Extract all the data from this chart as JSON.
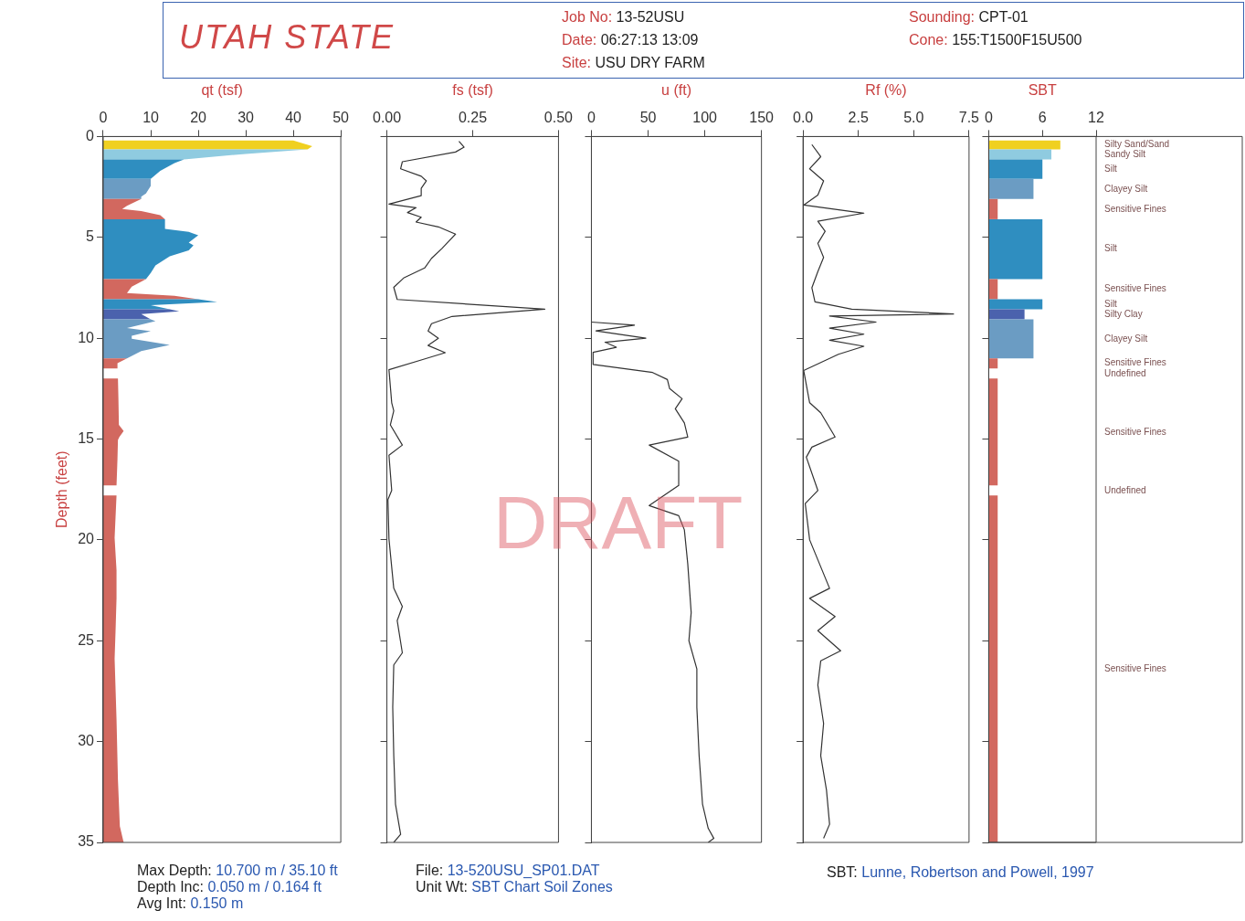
{
  "chart_data": [
    {
      "type": "area",
      "title": "UTAH STATE",
      "xlabel": "qt (tsf)",
      "ylabel": "Depth (feet)",
      "xlim": [
        0,
        50
      ],
      "xticks": [
        0,
        10,
        20,
        30,
        40,
        50
      ],
      "ylim": [
        35,
        0
      ],
      "yticks": [
        0,
        5,
        10,
        15,
        20,
        25,
        30,
        35
      ],
      "annotations": [
        "Job No: 13-52USU",
        "Date: 06:27:13 13:09",
        "Site: USU DRY FARM",
        "Sounding: CPT-01",
        "Cone: 155:T1500F15U500",
        "Max Depth:  10.700 m /  35.10 ft",
        "Depth Inc: 0.050 m / 0.164 ft",
        "Avg Int: 0.150 m",
        "File: 13-520USU_SP01.DAT",
        "Unit Wt: SBT Chart Soil Zones",
        "SBT: Lunne, Robertson and Powell, 1997",
        "DRAFT"
      ],
      "series": [
        {
          "color": "#f0d020",
          "x": [
            0,
            40,
            44,
            43,
            0
          ],
          "values": [
            0.2,
            0.2,
            0.48,
            0.64,
            0.64
          ]
        },
        {
          "color": "#8fcbe0",
          "x": [
            0,
            43,
            30,
            17,
            0
          ],
          "values": [
            0.64,
            0.64,
            0.86,
            1.14,
            1.14
          ]
        },
        {
          "color": "#2f8ec0",
          "x": [
            0,
            17,
            15,
            12,
            10,
            0
          ],
          "values": [
            1.14,
            1.14,
            1.32,
            1.7,
            2.1,
            2.1
          ]
        },
        {
          "color": "#6b9cc3",
          "x": [
            0,
            10,
            10,
            9,
            8,
            8,
            0
          ],
          "values": [
            2.1,
            2.1,
            2.45,
            2.83,
            2.98,
            3.1,
            3.1
          ]
        },
        {
          "color": "#d2685f",
          "x": [
            0,
            8,
            5,
            4,
            8,
            12,
            13,
            0
          ],
          "values": [
            3.1,
            3.1,
            3.44,
            3.59,
            3.7,
            3.9,
            4.1,
            4.1
          ]
        },
        {
          "color": "#2f8ec0",
          "x": [
            0,
            13,
            13,
            18,
            20,
            18,
            19,
            18,
            14,
            11,
            10,
            9,
            0
          ],
          "values": [
            4.1,
            4.1,
            4.58,
            4.73,
            4.9,
            5.26,
            5.4,
            5.64,
            5.94,
            6.39,
            6.77,
            7.07,
            7.07
          ]
        },
        {
          "color": "#d2685f",
          "x": [
            0,
            9,
            6,
            5,
            15,
            20,
            0
          ],
          "values": [
            7.07,
            7.07,
            7.45,
            7.76,
            7.9,
            8.07,
            8.07
          ]
        },
        {
          "color": "#2f8ec0",
          "x": [
            0,
            20,
            24,
            10,
            14,
            0
          ],
          "values": [
            8.07,
            8.07,
            8.2,
            8.36,
            8.57,
            8.57
          ]
        },
        {
          "color": "#4b62ad",
          "x": [
            0,
            14,
            16,
            8,
            10,
            0
          ],
          "values": [
            8.57,
            8.57,
            8.67,
            8.8,
            9.07,
            9.07
          ]
        },
        {
          "color": "#6b9cc3",
          "x": [
            0,
            10,
            11,
            5,
            10,
            6,
            6,
            14,
            8,
            5,
            0
          ],
          "values": [
            9.07,
            9.07,
            9.15,
            9.5,
            9.65,
            9.88,
            10.03,
            10.33,
            10.64,
            11.0,
            11.0
          ]
        },
        {
          "color": "#d2685f",
          "x": [
            0,
            5,
            3,
            3,
            0
          ],
          "values": [
            11.0,
            11.0,
            11.24,
            11.5,
            11.5
          ]
        },
        {
          "color": "#d2685f",
          "x": [
            0,
            3.1,
            3.2,
            3.3,
            4.3,
            3.4,
            3.1,
            3,
            2.8,
            0
          ],
          "values": [
            12.0,
            12.0,
            13,
            14.3,
            14.6,
            14.9,
            15.05,
            16,
            17.3,
            17.3
          ]
        },
        {
          "color": "#d2685f",
          "x": [
            0,
            2.8,
            2.4,
            2.8,
            2.8,
            2.6,
            2.4,
            2.8,
            3.1,
            3.5,
            4.3,
            0
          ],
          "values": [
            17.8,
            17.8,
            19.9,
            21.5,
            22.9,
            24.5,
            25.9,
            28.9,
            31.9,
            34.2,
            35,
            35
          ]
        }
      ]
    },
    {
      "type": "line",
      "xlabel": "fs (tsf)",
      "xlim": [
        0,
        0.5
      ],
      "xticks": [
        {
          "value": 0,
          "label": "0.00"
        },
        {
          "value": 0.25,
          "label": "0.25"
        },
        {
          "value": 0.5,
          "label": "0.50"
        }
      ],
      "ylim": [
        35,
        0
      ],
      "yticks": [
        0,
        5,
        10,
        15,
        20,
        25,
        30,
        35
      ],
      "tick_labels": "x",
      "series": [
        {
          "color": "#333333",
          "x": [
            0.21,
            0.225,
            0.2,
            0.045,
            0.04,
            0.1,
            0.115,
            0.1,
            0.1,
            0.006,
            0.085,
            0.06,
            0.1,
            0.085,
            0.15,
            0.2,
            0.18,
            0.16,
            0.13,
            0.11,
            0.05,
            0.02,
            0.03,
            0.46,
            0.19,
            0.13,
            0.12,
            0.15,
            0.12,
            0.17,
            0.1,
            0.006,
            0.014,
            0.02,
            0.01,
            0.045,
            0.006,
            0.014,
            0.003,
            0.006,
            0.02,
            0.045,
            0.03,
            0.045,
            0.02,
            0.017,
            0.02,
            0.025,
            0.04,
            0.02
          ],
          "values": [
            0.24,
            0.53,
            0.77,
            1.25,
            1.6,
            1.97,
            2.2,
            2.57,
            2.93,
            3.35,
            3.53,
            3.77,
            4.0,
            4.24,
            4.48,
            4.84,
            5.2,
            5.56,
            6.04,
            6.52,
            7.0,
            7.48,
            8.08,
            8.56,
            8.92,
            9.28,
            9.64,
            10.0,
            10.36,
            10.72,
            11.08,
            11.56,
            13.2,
            13.6,
            14.3,
            15.3,
            15.8,
            17.55,
            18.0,
            19.95,
            22.4,
            23.3,
            24.0,
            25.6,
            26.2,
            28.3,
            30.7,
            33.1,
            34.6,
            35
          ]
        }
      ]
    },
    {
      "type": "line",
      "xlabel": "u (ft)",
      "xlim": [
        0,
        150
      ],
      "xticks": [
        0,
        50,
        100,
        150
      ],
      "ylim": [
        35,
        0
      ],
      "yticks": [
        0,
        5,
        10,
        15,
        20,
        25,
        30,
        35
      ],
      "tick_labels": "x",
      "series": [
        {
          "color": "#333333",
          "x": [
            0,
            38,
            4,
            48,
            12,
            22,
            1.5,
            1.5,
            54,
            67,
            69,
            80,
            74,
            82,
            85,
            51,
            77,
            77,
            51,
            77,
            82,
            85,
            88,
            86,
            93,
            93,
            95,
            98,
            103,
            108,
            103
          ],
          "values": [
            9.2,
            9.35,
            9.64,
            10.0,
            10.2,
            10.45,
            10.7,
            11.3,
            11.7,
            12.05,
            12.5,
            13.0,
            13.5,
            14.2,
            14.9,
            15.3,
            16.1,
            17.3,
            18.3,
            18.8,
            19.5,
            21.2,
            23.6,
            25.0,
            26.4,
            28.3,
            30.7,
            33.1,
            34.3,
            34.8,
            35
          ]
        }
      ]
    },
    {
      "type": "line",
      "xlabel": "Rf (%)",
      "xlim": [
        0,
        7.5
      ],
      "xticks": [
        {
          "value": 0,
          "label": "0.0"
        },
        2.5,
        {
          "value": 5,
          "label": "5.0"
        },
        7.5
      ],
      "ylim": [
        35,
        0
      ],
      "yticks": [
        0,
        5,
        10,
        15,
        20,
        25,
        30,
        35
      ],
      "tick_labels": "x",
      "series": [
        {
          "color": "#333333",
          "x": [
            0.4,
            0.8,
            0.3,
            0.93,
            0.67,
            0.03,
            2.75,
            0.67,
            1.0,
            0.67,
            0.93,
            0.67,
            0.4,
            0.54,
            2.2,
            6.8,
            1.2,
            3.3,
            1.2,
            2.75,
            1.2,
            2.75,
            1.6,
            0.03,
            0.3,
            0.8,
            1.45,
            0.4,
            0.15,
            0.67,
            0.1,
            0.3,
            1.2,
            0.3,
            1.45,
            0.67,
            1.7,
            0.8,
            0.67,
            0.93,
            0.8,
            1.06,
            1.2,
            0.93
          ],
          "values": [
            0.4,
            1.0,
            1.6,
            2.2,
            2.9,
            3.4,
            3.8,
            4.2,
            4.7,
            5.3,
            6.0,
            6.7,
            7.5,
            8.2,
            8.56,
            8.8,
            8.9,
            9.2,
            9.5,
            9.8,
            10.1,
            10.4,
            10.8,
            11.6,
            13.2,
            13.7,
            14.9,
            15.4,
            15.9,
            17.55,
            18.2,
            20.0,
            22.4,
            22.9,
            23.8,
            24.5,
            25.5,
            26.0,
            27.2,
            29.1,
            30.7,
            32.4,
            34.1,
            34.8
          ]
        }
      ]
    },
    {
      "type": "area",
      "xlabel": "SBT",
      "xlim": [
        0,
        12
      ],
      "xticks": [
        0,
        6,
        12
      ],
      "ylim": [
        35,
        0
      ],
      "yticks": [
        0,
        5,
        10,
        15,
        20,
        25,
        30,
        35
      ],
      "tick_labels": "x",
      "annotations": [
        "Undefined",
        "Undefined"
      ],
      "series": [
        {
          "name": "Silty Sand/Sand",
          "color": "#f0d020",
          "x": [
            0,
            8,
            8,
            0
          ],
          "values": [
            0.2,
            0.2,
            0.64,
            0.64
          ]
        },
        {
          "name": "Sandy Silt",
          "color": "#8fcbe0",
          "x": [
            0,
            7,
            7,
            0
          ],
          "values": [
            0.64,
            0.64,
            1.14,
            1.14
          ]
        },
        {
          "name": "Silt",
          "color": "#2f8ec0",
          "x": [
            0,
            6,
            6,
            0
          ],
          "values": [
            1.14,
            1.14,
            2.1,
            2.1
          ]
        },
        {
          "name": "Clayey Silt",
          "color": "#6b9cc3",
          "x": [
            0,
            5,
            5,
            0
          ],
          "values": [
            2.1,
            2.1,
            3.1,
            3.1
          ]
        },
        {
          "name": "Sensitive Fines",
          "color": "#d2685f",
          "x": [
            0,
            1,
            1,
            0
          ],
          "values": [
            3.1,
            3.1,
            4.1,
            4.1
          ]
        },
        {
          "name": "Silt",
          "color": "#2f8ec0",
          "x": [
            0,
            6,
            6,
            0
          ],
          "values": [
            4.1,
            4.1,
            7.07,
            7.07
          ]
        },
        {
          "name": "Sensitive Fines",
          "color": "#d2685f",
          "x": [
            0,
            1,
            1,
            0
          ],
          "values": [
            7.07,
            7.07,
            8.07,
            8.07
          ]
        },
        {
          "name": "Silt",
          "color": "#2f8ec0",
          "x": [
            0,
            6,
            6,
            0
          ],
          "values": [
            8.07,
            8.07,
            8.57,
            8.57
          ]
        },
        {
          "name": "Silty Clay",
          "color": "#4b62ad",
          "x": [
            0,
            4,
            4,
            0
          ],
          "values": [
            8.57,
            8.57,
            9.07,
            9.07
          ]
        },
        {
          "name": "Clayey Silt",
          "color": "#6b9cc3",
          "x": [
            0,
            5,
            5,
            0
          ],
          "values": [
            9.07,
            9.07,
            11.0,
            11.0
          ]
        },
        {
          "name": "Sensitive Fines",
          "color": "#d2685f",
          "x": [
            0,
            1,
            1,
            0
          ],
          "values": [
            11.0,
            11.0,
            11.5,
            11.5
          ]
        },
        {
          "name": "Sensitive Fines",
          "color": "#d2685f",
          "x": [
            0,
            1,
            1,
            0
          ],
          "values": [
            12.0,
            12.0,
            17.3,
            17.3
          ]
        },
        {
          "name": "Sensitive Fines",
          "color": "#d2685f",
          "x": [
            0,
            1,
            1,
            0
          ],
          "values": [
            17.8,
            17.8,
            35,
            35
          ]
        }
      ]
    }
  ]
}
